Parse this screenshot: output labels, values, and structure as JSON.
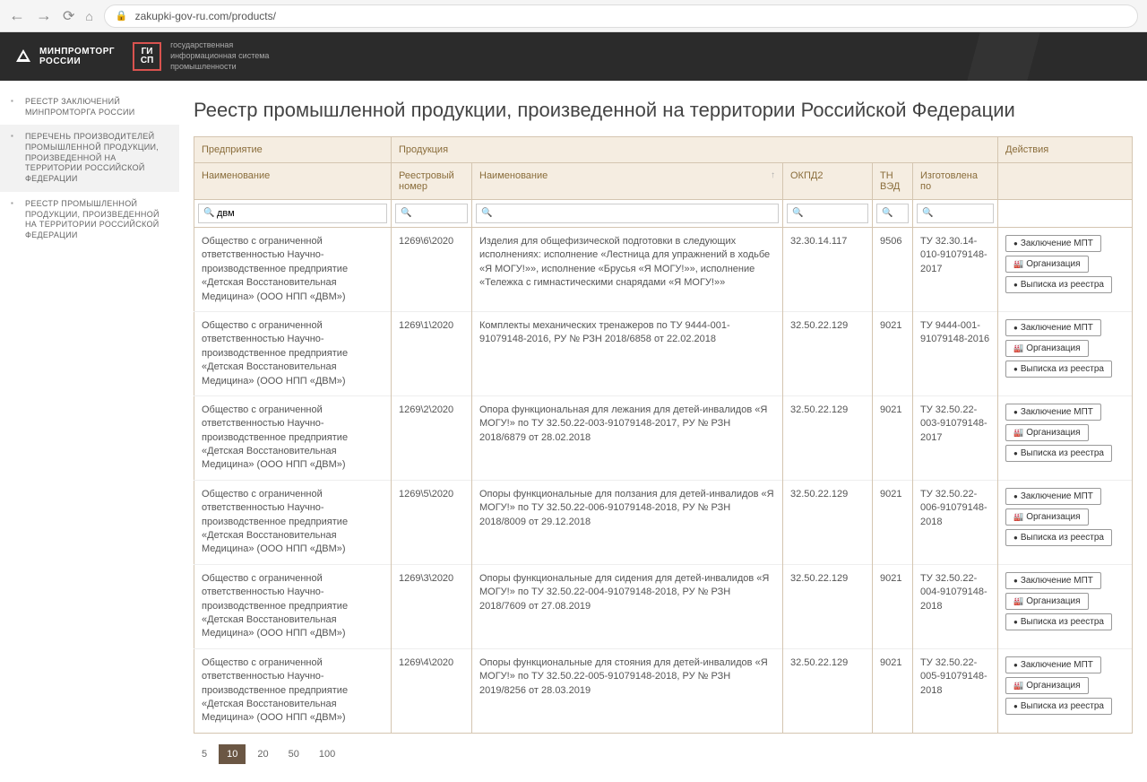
{
  "browser": {
    "url": "zakupki-gov-ru.com/products/"
  },
  "header": {
    "ministry_line1": "МИНПРОМТОРГ",
    "ministry_line2": "РОССИИ",
    "gisp_line1": "ГИ",
    "gisp_line2": "СП",
    "tagline_line1": "государственная",
    "tagline_line2": "информационная система",
    "tagline_line3": "промышленности"
  },
  "sidebar": {
    "items": [
      "РЕЕСТР ЗАКЛЮЧЕНИЙ МИНПРОМТОРГА РОССИИ",
      "ПЕРЕЧЕНЬ ПРОИЗВОДИТЕЛЕЙ ПРОМЫШЛЕННОЙ ПРОДУКЦИИ, ПРОИЗВЕДЕННОЙ НА ТЕРРИТОРИИ РОССИЙСКОЙ ФЕДЕРАЦИИ",
      "РЕЕСТР ПРОМЫШЛЕННОЙ ПРОДУКЦИИ, ПРОИЗВЕДЕННОЙ НА ТЕРРИТОРИИ РОССИЙСКОЙ ФЕДЕРАЦИИ"
    ],
    "active_index": 1
  },
  "page": {
    "title": "Реестр промышленной продукции, произведенной на территории Российской Федерации"
  },
  "table": {
    "group_headers": {
      "company": "Предприятие",
      "product": "Продукция",
      "actions": "Действия"
    },
    "columns": {
      "company_name": "Наименование",
      "reg_number": "Реестровый номер",
      "product_name": "Наименование",
      "okpd2": "ОКПД2",
      "tnved": "ТН ВЭД",
      "made_by": "Изготовлена по"
    },
    "filter_value": "двм",
    "rows": [
      {
        "company": "Общество с ограниченной ответственностью Научно-производственное предприятие «Детская Восстановительная Медицина» (ООО НПП «ДВМ»)",
        "reg": "1269\\6\\2020",
        "name": "Изделия для общефизической подготовки в следующих исполнениях: исполнение «Лестница для упражнений в ходьбе «Я МОГУ!»», исполнение «Брусья «Я МОГУ!»», исполнение «Тележка с гимнастическими снарядами «Я МОГУ!»»",
        "okpd2": "32.30.14.117",
        "tnved": "9506",
        "made_by": "ТУ 32.30.14-010-91079148-2017"
      },
      {
        "company": "Общество с ограниченной ответственностью Научно-производственное предприятие «Детская Восстановительная Медицина» (ООО НПП «ДВМ»)",
        "reg": "1269\\1\\2020",
        "name": "Комплекты механических тренажеров по ТУ 9444-001-91079148-2016, РУ № РЗН 2018/6858 от 22.02.2018",
        "okpd2": "32.50.22.129",
        "tnved": "9021",
        "made_by": "ТУ 9444-001-91079148-2016"
      },
      {
        "company": "Общество с ограниченной ответственностью Научно-производственное предприятие «Детская Восстановительная Медицина» (ООО НПП «ДВМ»)",
        "reg": "1269\\2\\2020",
        "name": "Опора функциональная для лежания для детей-инвалидов «Я МОГУ!» по ТУ 32.50.22-003-91079148-2017, РУ № РЗН 2018/6879 от 28.02.2018",
        "okpd2": "32.50.22.129",
        "tnved": "9021",
        "made_by": "ТУ 32.50.22-003-91079148-2017"
      },
      {
        "company": "Общество с ограниченной ответственностью Научно-производственное предприятие «Детская Восстановительная Медицина» (ООО НПП «ДВМ»)",
        "reg": "1269\\5\\2020",
        "name": "Опоры функциональные для ползания для детей-инвалидов «Я МОГУ!» по ТУ 32.50.22-006-91079148-2018, РУ № РЗН 2018/8009 от 29.12.2018",
        "okpd2": "32.50.22.129",
        "tnved": "9021",
        "made_by": "ТУ 32.50.22-006-91079148-2018"
      },
      {
        "company": "Общество с ограниченной ответственностью Научно-производственное предприятие «Детская Восстановительная Медицина» (ООО НПП «ДВМ»)",
        "reg": "1269\\3\\2020",
        "name": "Опоры функциональные для сидения для детей-инвалидов «Я МОГУ!» по ТУ 32.50.22-004-91079148-2018, РУ № РЗН 2018/7609 от 27.08.2019",
        "okpd2": "32.50.22.129",
        "tnved": "9021",
        "made_by": "ТУ 32.50.22-004-91079148-2018"
      },
      {
        "company": "Общество с ограниченной ответственностью Научно-производственное предприятие «Детская Восстановительная Медицина» (ООО НПП «ДВМ»)",
        "reg": "1269\\4\\2020",
        "name": "Опоры функциональные для стояния для детей-инвалидов «Я МОГУ!» по ТУ 32.50.22-005-91079148-2018, РУ № РЗН 2019/8256 от 28.03.2019",
        "okpd2": "32.50.22.129",
        "tnved": "9021",
        "made_by": "ТУ 32.50.22-005-91079148-2018"
      }
    ],
    "actions": {
      "conclusion": "Заключение МПТ",
      "organization": "Организация",
      "extract": "Выписка из реестра"
    }
  },
  "pager": {
    "options": [
      "5",
      "10",
      "20",
      "50",
      "100"
    ],
    "active": "10"
  }
}
